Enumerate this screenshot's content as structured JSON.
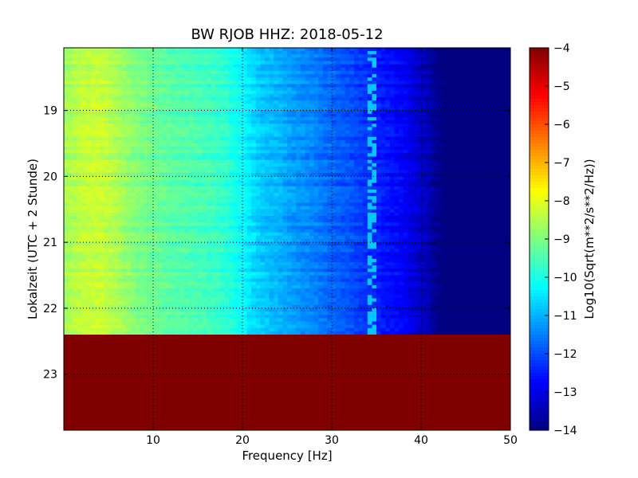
{
  "chart_data": {
    "type": "heatmap",
    "title": "BW RJOB HHZ: 2018-05-12",
    "xlabel": "Frequency [Hz]",
    "ylabel": "Lokalzeit (UTC + 2 Stunde)",
    "colorbar_label": "Log10(Sqrt(m**2/s**2/Hz))",
    "xlim": [
      0,
      50
    ],
    "ylim": [
      18.05,
      23.85
    ],
    "y_inverted": true,
    "x_ticks": [
      10,
      20,
      30,
      40,
      50
    ],
    "y_ticks": [
      19,
      20,
      21,
      22,
      23
    ],
    "color_range": [
      -14,
      -4
    ],
    "colorbar_ticks": [
      -4,
      -5,
      -6,
      -7,
      -8,
      -9,
      -10,
      -11,
      -12,
      -13,
      -14
    ],
    "colormap": "jet",
    "grid": true,
    "data_end_time": 22.4,
    "no_data_fill_value": -4,
    "spectrum_profile": {
      "frequency_hz": [
        0,
        2,
        4,
        6,
        8,
        10,
        12,
        14,
        16,
        18,
        20,
        22,
        24,
        26,
        28,
        30,
        32,
        34,
        36,
        38,
        39,
        40,
        41,
        42,
        45,
        50
      ],
      "log_psd": [
        -8.7,
        -8.4,
        -8.3,
        -8.6,
        -9.0,
        -9.2,
        -9.4,
        -9.5,
        -9.6,
        -9.8,
        -10.3,
        -10.8,
        -11.0,
        -11.3,
        -11.5,
        -11.8,
        -12.0,
        -12.3,
        -12.6,
        -12.8,
        -13.1,
        -13.3,
        -13.6,
        -14,
        -14,
        -14
      ]
    },
    "peak_line": {
      "frequency_hz": 34.5,
      "log_psd": -10.8
    }
  }
}
